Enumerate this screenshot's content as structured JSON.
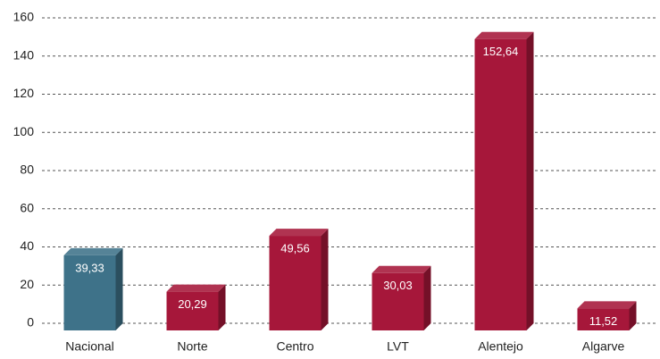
{
  "chart_data": {
    "type": "bar",
    "categories": [
      "Nacional",
      "Norte",
      "Centro",
      "LVT",
      "Alentejo",
      "Algarve"
    ],
    "values": [
      39.33,
      20.29,
      49.56,
      30.03,
      152.64,
      11.52
    ],
    "value_labels": [
      "39,33",
      "20,29",
      "49,56",
      "30,03",
      "152,64",
      "11,52"
    ],
    "colors": [
      "#3e7289",
      "#a6173a",
      "#a6173a",
      "#a6173a",
      "#a6173a",
      "#a6173a"
    ],
    "ylim": [
      0,
      160
    ],
    "yticks": [
      0,
      20,
      40,
      60,
      80,
      100,
      120,
      140,
      160
    ],
    "grid": true
  }
}
